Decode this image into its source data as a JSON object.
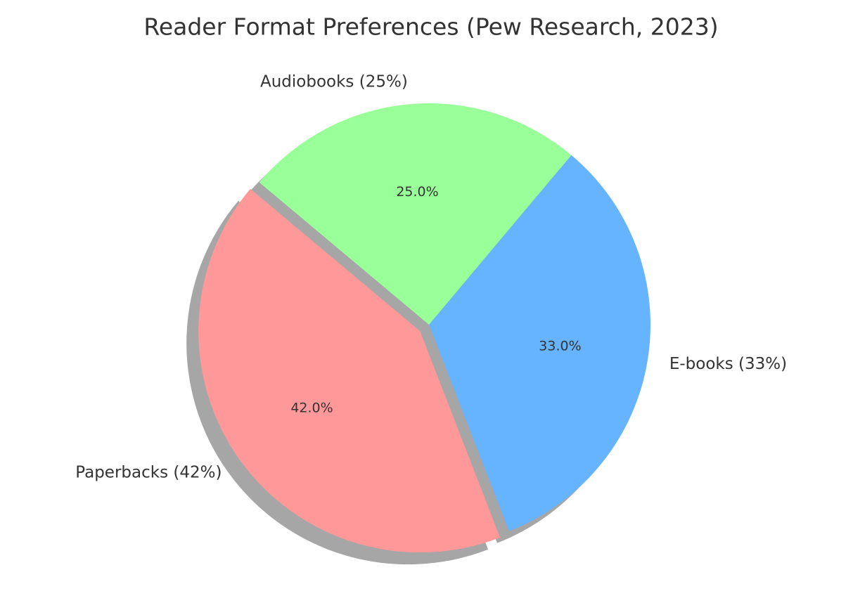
{
  "chart_data": {
    "type": "pie",
    "title": "Reader Format Preferences (Pew Research, 2023)",
    "categories": [
      "Paperbacks (42%)",
      "E-books (33%)",
      "Audiobooks (25%)"
    ],
    "values": [
      42,
      33,
      25
    ],
    "value_labels": [
      "42.0%",
      "33.0%",
      "25.0%"
    ],
    "colors": [
      "#ff9999",
      "#66b3ff",
      "#99ff99"
    ],
    "explode": [
      0.05,
      0,
      0
    ],
    "shadow": true
  }
}
